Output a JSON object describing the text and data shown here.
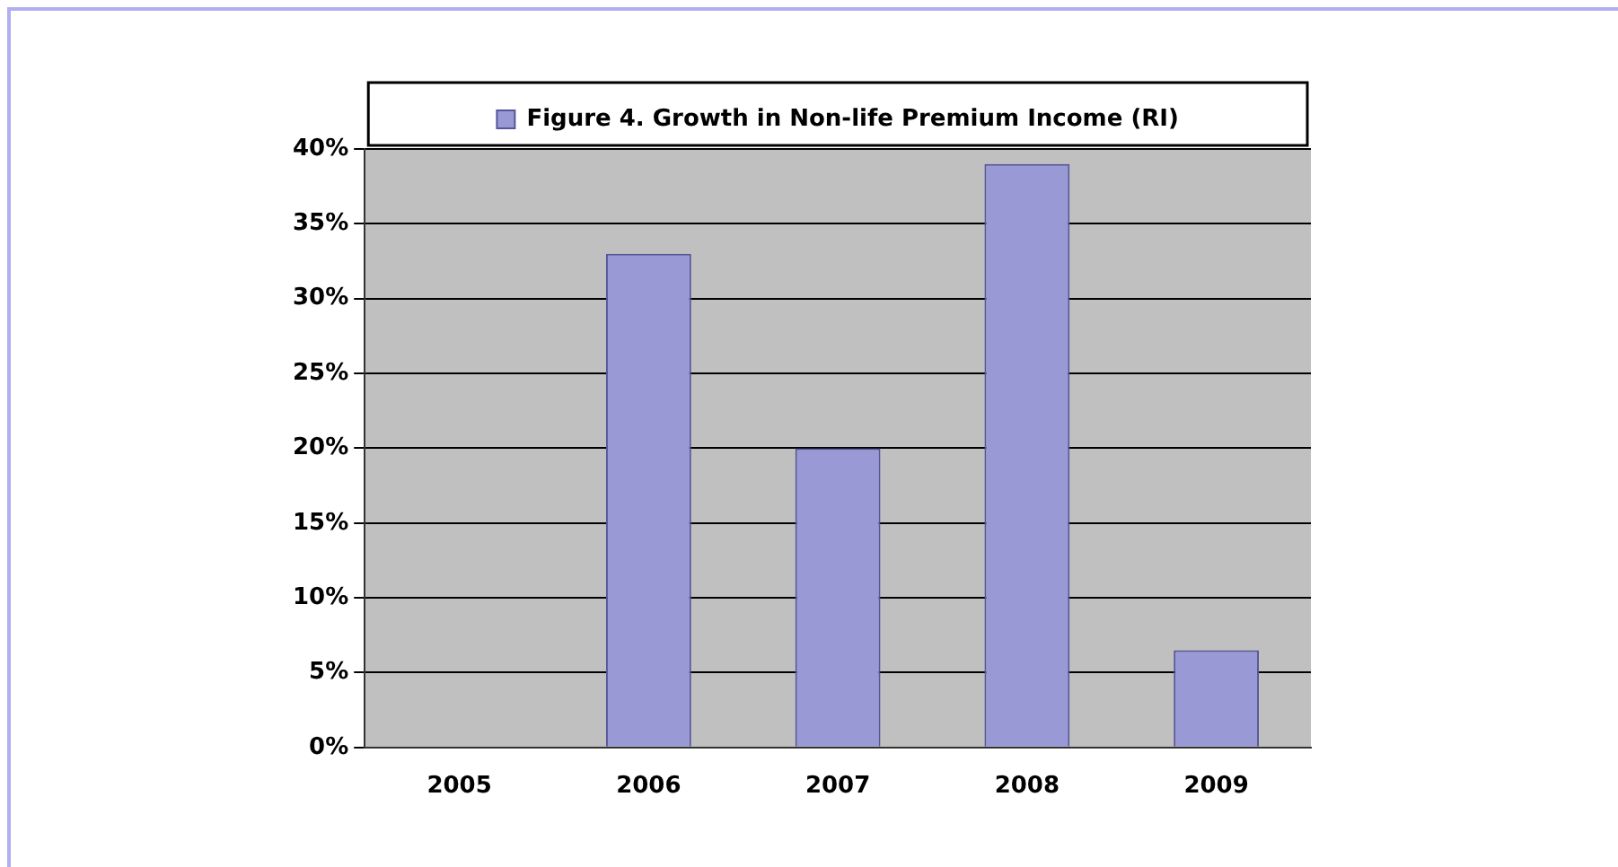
{
  "chart_data": {
    "type": "bar",
    "categories": [
      "2005",
      "2006",
      "2007",
      "2008",
      "2009"
    ],
    "series": [
      {
        "name": "Figure 4. Growth in Non-life Premium Income (RI)",
        "color": "#9999d6",
        "values": [
          0,
          33,
          20,
          39,
          6.5
        ]
      }
    ],
    "ylim": [
      0,
      40
    ],
    "yticks": [
      {
        "value": 0,
        "label": "0%"
      },
      {
        "value": 5,
        "label": "5%"
      },
      {
        "value": 10,
        "label": "10%"
      },
      {
        "value": 15,
        "label": "15%"
      },
      {
        "value": 20,
        "label": "20%"
      },
      {
        "value": 25,
        "label": "25%"
      },
      {
        "value": 30,
        "label": "30%"
      },
      {
        "value": 35,
        "label": "35%"
      },
      {
        "value": 40,
        "label": "40%"
      }
    ],
    "grid": "y",
    "legend": "top"
  }
}
